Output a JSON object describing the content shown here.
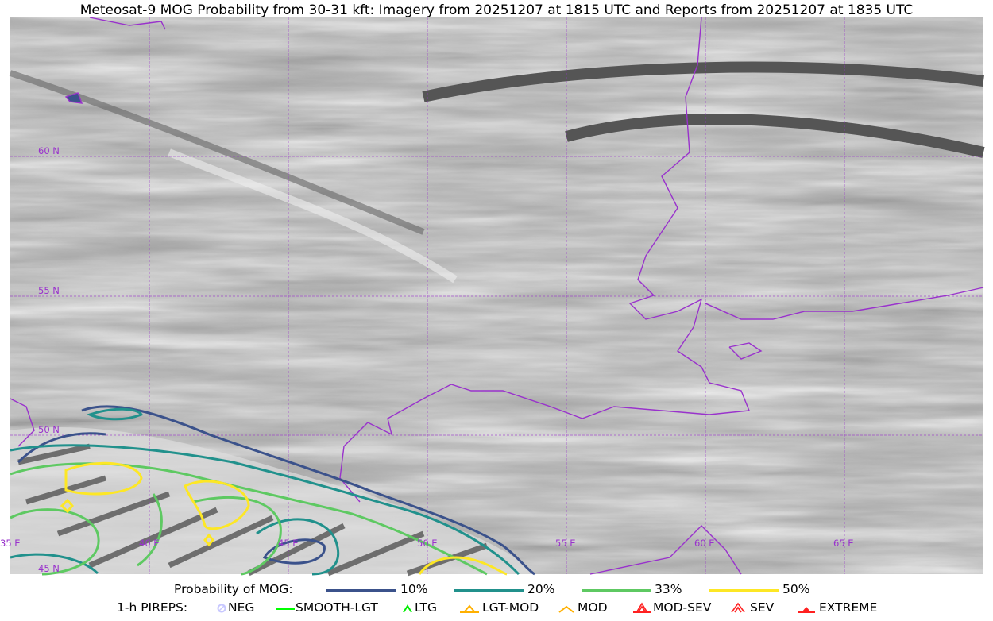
{
  "title": "Meteosat-9 MOG Probability from 30-31 kft: Imagery from 20251207 at 1815 UTC and Reports from 20251207 at 1835 UTC",
  "map": {
    "lat_labels": [
      "60 N",
      "55 N",
      "50 N",
      "45 N"
    ],
    "lon_labels": [
      "35 E",
      "40 E",
      "45 E",
      "50 E",
      "55 E",
      "60 E",
      "65 E"
    ],
    "grid_color": "#9932cc",
    "border_color": "#9932cc"
  },
  "legend": {
    "probability_label": "Probability of MOG:",
    "levels": [
      {
        "label": "10%",
        "color": "#3b528b"
      },
      {
        "label": "20%",
        "color": "#21918c"
      },
      {
        "label": "33%",
        "color": "#5ec962"
      },
      {
        "label": "50%",
        "color": "#fde725"
      }
    ],
    "pireps_label": "1-h PIREPS:",
    "pireps": [
      {
        "label": "NEG",
        "color": "#c8c8ff",
        "icon": "neg-circle-icon"
      },
      {
        "label": "SMOOTH-LGT",
        "color": "#00ff00",
        "icon": "line-icon"
      },
      {
        "label": "LTG",
        "color": "#00ee00",
        "icon": "caret-icon"
      },
      {
        "label": "LGT-MOD",
        "color": "#ffb000",
        "icon": "triangle-bar-icon"
      },
      {
        "label": "MOD",
        "color": "#ffb000",
        "icon": "caret-icon"
      },
      {
        "label": "MOD-SEV",
        "color": "#ff2020",
        "icon": "double-caret-bar-icon"
      },
      {
        "label": "SEV",
        "color": "#ff2020",
        "icon": "double-caret-icon"
      },
      {
        "label": "EXTREME",
        "color": "#ff2020",
        "icon": "filled-triangle-icon"
      }
    ]
  }
}
